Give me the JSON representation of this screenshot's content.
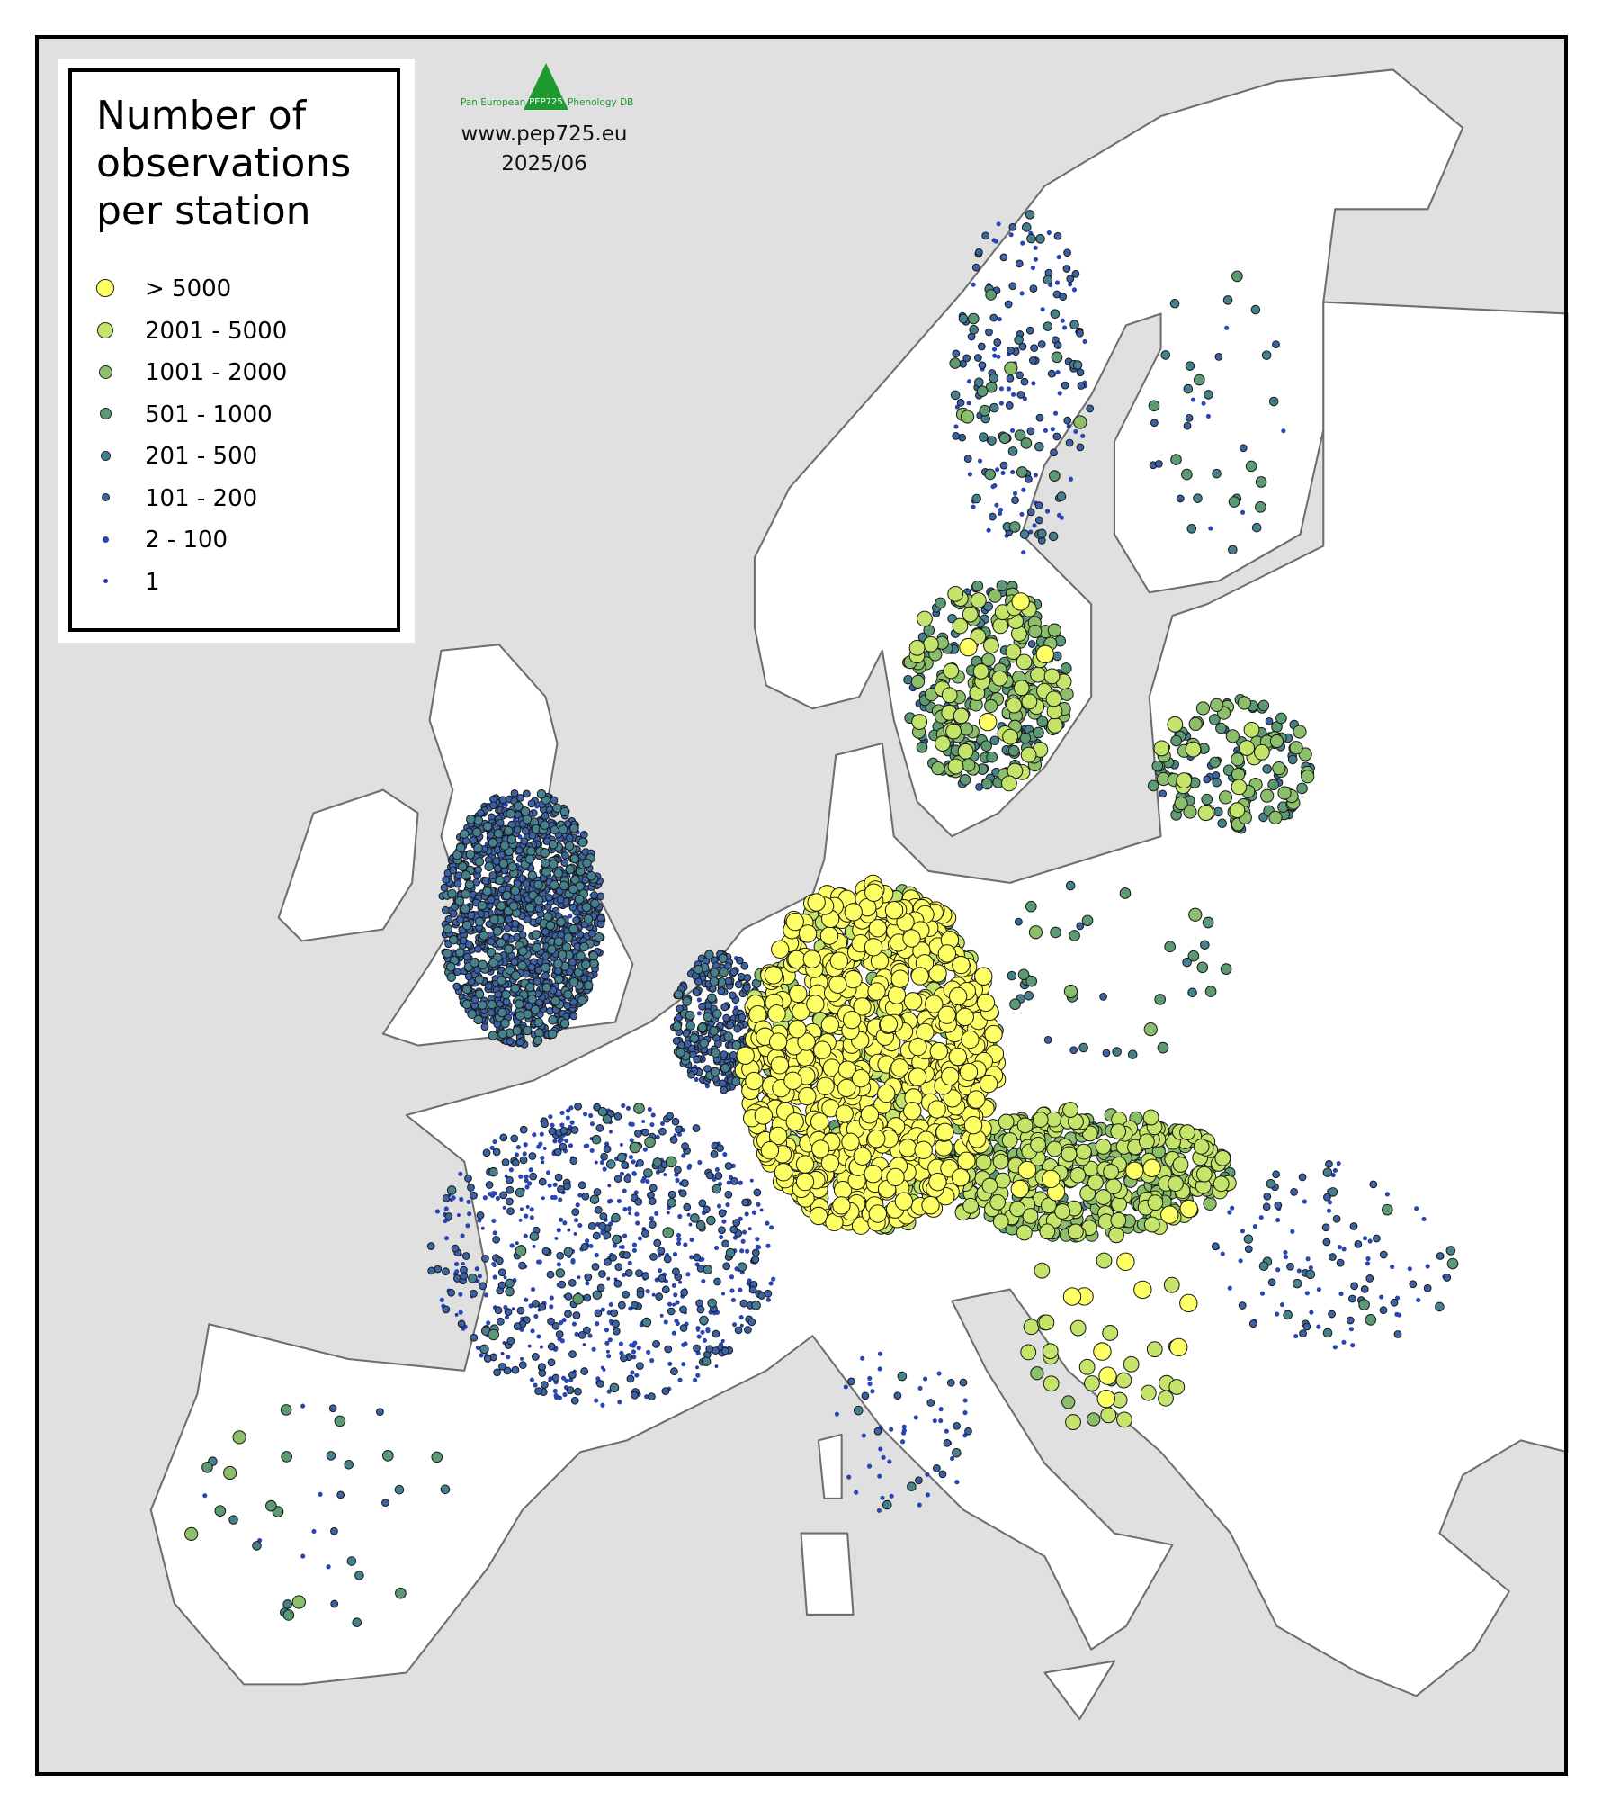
{
  "legend": {
    "title": "Number of observations per station",
    "title_lines": [
      "Number of",
      "observations",
      "per station"
    ],
    "classes": [
      {
        "label": "> 5000",
        "color": "#ffff66"
      },
      {
        "label": "2001 - 5000",
        "color": "#c4e46a"
      },
      {
        "label": "1001 - 2000",
        "color": "#8bbf6a"
      },
      {
        "label": "501 - 1000",
        "color": "#5c9a74"
      },
      {
        "label": "201 - 500",
        "color": "#45808f"
      },
      {
        "label": "101 - 200",
        "color": "#3a62a6"
      },
      {
        "label": "2 - 100",
        "color": "#2a45b0"
      },
      {
        "label": "1",
        "color": "#2236b0"
      }
    ]
  },
  "logo": {
    "left": "Pan European",
    "middle": "PEP725",
    "right": "Phenology DB",
    "color": "#1f9a30"
  },
  "source": {
    "url": "www.pep725.eu",
    "date": "2025/06"
  },
  "colors": {
    "sea": "#e0e0e0",
    "land": "#ffffff",
    "border": "#6e6e6e",
    "frame": "#000000"
  }
}
